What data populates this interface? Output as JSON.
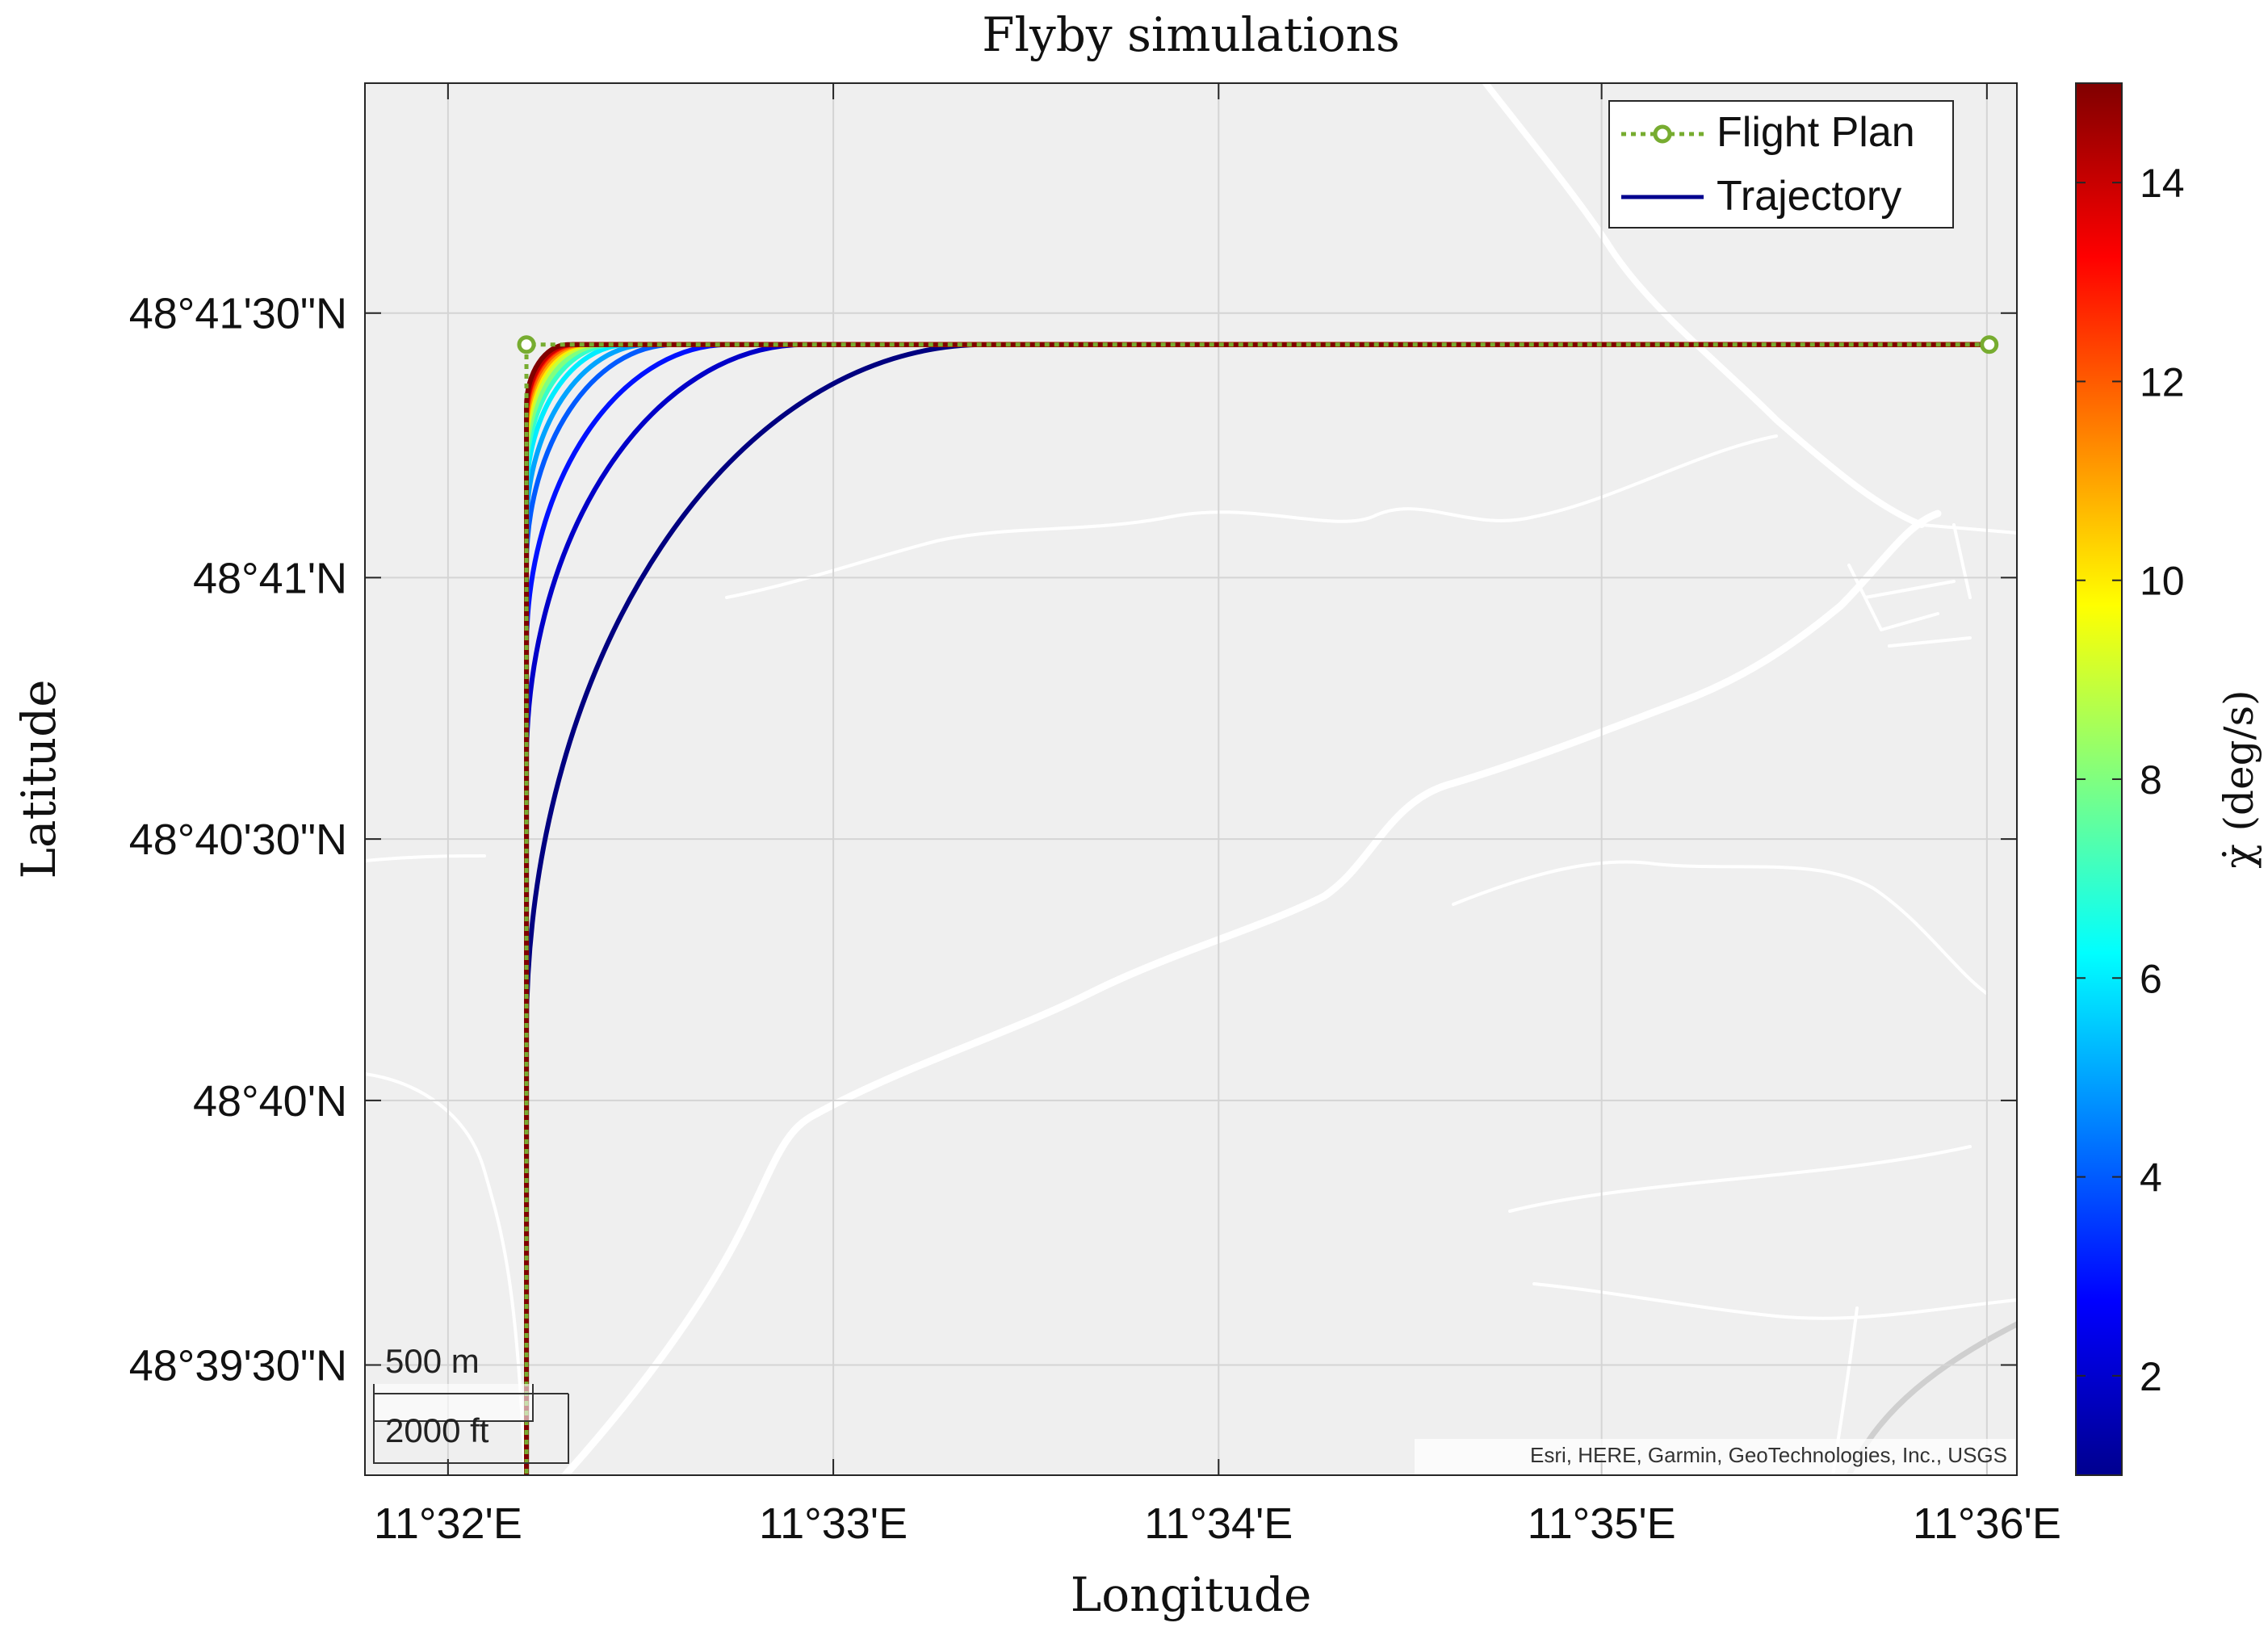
{
  "chart_data": {
    "type": "line",
    "title": "Flyby simulations",
    "xlabel": "Longitude",
    "ylabel": "Latitude",
    "xlim": [
      11.5297,
      11.6013
    ],
    "ylim": [
      48.6548,
      48.699
    ],
    "grid": true,
    "x_ticks": [
      {
        "value": 11.5333,
        "label": "11°32'E"
      },
      {
        "value": 11.55,
        "label": "11°33'E"
      },
      {
        "value": 11.5667,
        "label": "11°34'E"
      },
      {
        "value": 11.5833,
        "label": "11°35'E"
      },
      {
        "value": 11.6,
        "label": "11°36'E"
      }
    ],
    "y_ticks": [
      {
        "value": 48.6583,
        "label": "48°39'30\"N"
      },
      {
        "value": 48.6667,
        "label": "48°40'N"
      },
      {
        "value": 48.675,
        "label": "48°40'30\"N"
      },
      {
        "value": 48.6833,
        "label": "48°41'N"
      },
      {
        "value": 48.6917,
        "label": "48°41'30\"N"
      }
    ],
    "legend": {
      "position": "top-right",
      "entries": [
        "Flight Plan",
        "Trajectory"
      ]
    },
    "colors": {
      "flight_plan": "#77ac30",
      "trajectory_legend": "#00008f",
      "map_background": "#efefef",
      "road": "#ffffff",
      "grid": "#d4d4d4"
    },
    "colorbar": {
      "label": "χ̇ (deg/s)",
      "min": 1,
      "max": 15,
      "ticks": [
        2,
        4,
        6,
        8,
        10,
        12,
        14
      ],
      "colormap": "jet"
    },
    "flight_plan": {
      "name": "Flight Plan",
      "points": [
        {
          "lon": 11.6001,
          "lat": 48.6907
        },
        {
          "lon": 11.5367,
          "lat": 48.6907
        },
        {
          "lon": 11.5367,
          "lat": 48.6548
        }
      ]
    },
    "trajectories": {
      "name": "Trajectory",
      "corner": {
        "lon": 11.5367,
        "lat": 48.6907
      },
      "series": [
        {
          "rate_deg_s": 1.0,
          "turn_offset_deg": 0.0199
        },
        {
          "rate_deg_s": 2.0,
          "turn_offset_deg": 0.0121
        },
        {
          "rate_deg_s": 3.0,
          "turn_offset_deg": 0.0088
        },
        {
          "rate_deg_s": 4.0,
          "turn_offset_deg": 0.0064
        },
        {
          "rate_deg_s": 5.0,
          "turn_offset_deg": 0.0053
        },
        {
          "rate_deg_s": 6.0,
          "turn_offset_deg": 0.0044
        },
        {
          "rate_deg_s": 7.0,
          "turn_offset_deg": 0.0038
        },
        {
          "rate_deg_s": 8.0,
          "turn_offset_deg": 0.0034
        },
        {
          "rate_deg_s": 9.0,
          "turn_offset_deg": 0.003
        },
        {
          "rate_deg_s": 10.0,
          "turn_offset_deg": 0.0027
        },
        {
          "rate_deg_s": 11.0,
          "turn_offset_deg": 0.0025
        },
        {
          "rate_deg_s": 12.0,
          "turn_offset_deg": 0.0023
        },
        {
          "rate_deg_s": 13.0,
          "turn_offset_deg": 0.0021
        },
        {
          "rate_deg_s": 14.0,
          "turn_offset_deg": 0.002
        },
        {
          "rate_deg_s": 15.0,
          "turn_offset_deg": 0.0018
        }
      ]
    },
    "scale_bar": {
      "metric": "500 m",
      "imperial": "2000 ft"
    },
    "attribution": "Esri, HERE, Garmin, GeoTechnologies, Inc., USGS"
  }
}
